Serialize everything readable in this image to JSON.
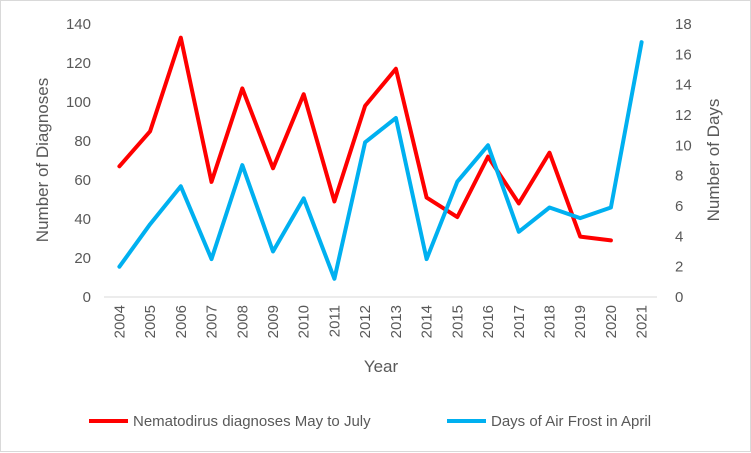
{
  "chart_data": {
    "type": "line",
    "title": "",
    "x": [
      "2004",
      "2005",
      "2006",
      "2007",
      "2008",
      "2009",
      "2010",
      "2011",
      "2012",
      "2013",
      "2014",
      "2015",
      "2016",
      "2017",
      "2018",
      "2019",
      "2020",
      "2021"
    ],
    "xlabel": "Year",
    "ylabel_left": "Number of Diagnoses",
    "ylabel_right": "Number of Days",
    "ylim_left": [
      0,
      140
    ],
    "yticks_left": [
      0,
      20,
      40,
      60,
      80,
      100,
      120,
      140
    ],
    "ylim_right": [
      0,
      18
    ],
    "yticks_right": [
      0,
      2,
      4,
      6,
      8,
      10,
      12,
      14,
      16,
      18
    ],
    "grid": false,
    "legend_position": "bottom",
    "series": [
      {
        "name": "Nematodirus diagnoses May to July",
        "axis": "left",
        "color": "#ff0000",
        "values": [
          67,
          85,
          133,
          59,
          107,
          66,
          104,
          49,
          98,
          117,
          51,
          41,
          72,
          48,
          74,
          31,
          29,
          null
        ]
      },
      {
        "name": "Days of Air Frost in April",
        "axis": "right",
        "color": "#00b0f0",
        "values": [
          2,
          4.8,
          7.3,
          2.5,
          8.7,
          3,
          6.5,
          1.2,
          10.2,
          11.8,
          2.5,
          7.6,
          10,
          4.3,
          5.9,
          5.2,
          5.9,
          16.8
        ]
      }
    ]
  }
}
